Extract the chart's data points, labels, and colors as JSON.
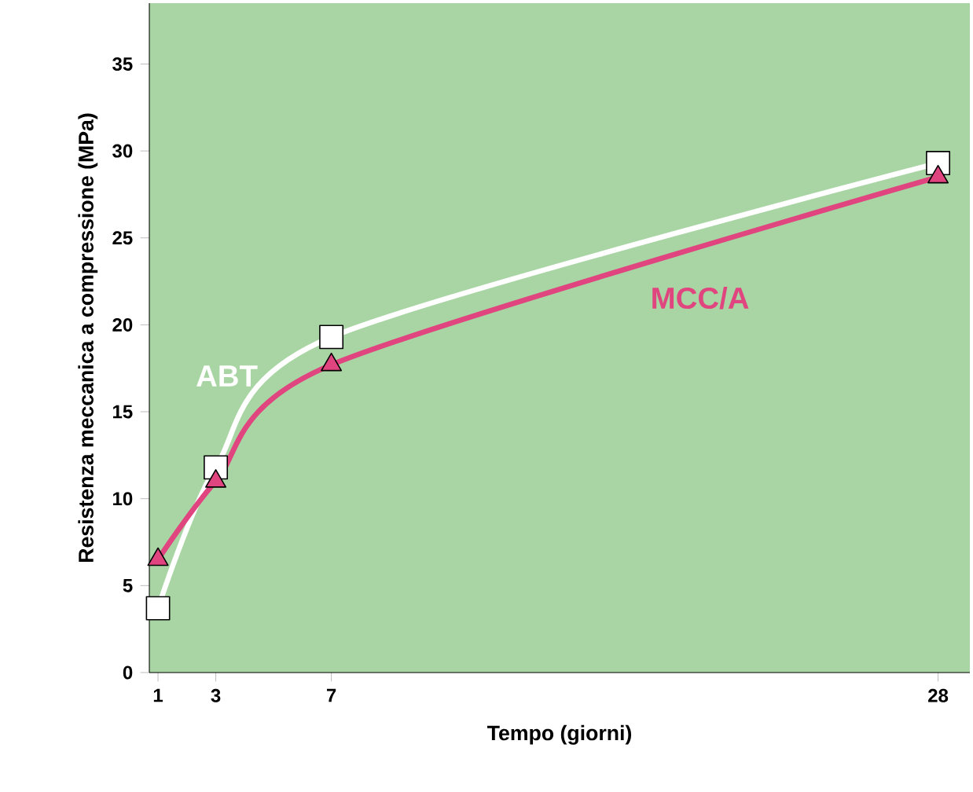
{
  "chart_data": {
    "type": "line",
    "xlabel": "Tempo (giorni)",
    "ylabel": "Resistenza meccanica a compressione (MPa)",
    "x": [
      1,
      3,
      7,
      28
    ],
    "series": [
      {
        "name": "ABT",
        "color": "#ffffff",
        "marker": "square",
        "values": [
          3.7,
          11.8,
          19.3,
          29.3
        ]
      },
      {
        "name": "MCC/A",
        "color": "#e0457f",
        "marker": "triangle",
        "values": [
          6.5,
          11.0,
          17.7,
          28.5
        ]
      }
    ],
    "xlim": [
      0.7,
      29.1
    ],
    "ylim": [
      0,
      38.5
    ],
    "xticks": [
      1,
      3,
      7,
      28
    ],
    "yticks": [
      0,
      5,
      10,
      15,
      20,
      25,
      30,
      35
    ]
  }
}
